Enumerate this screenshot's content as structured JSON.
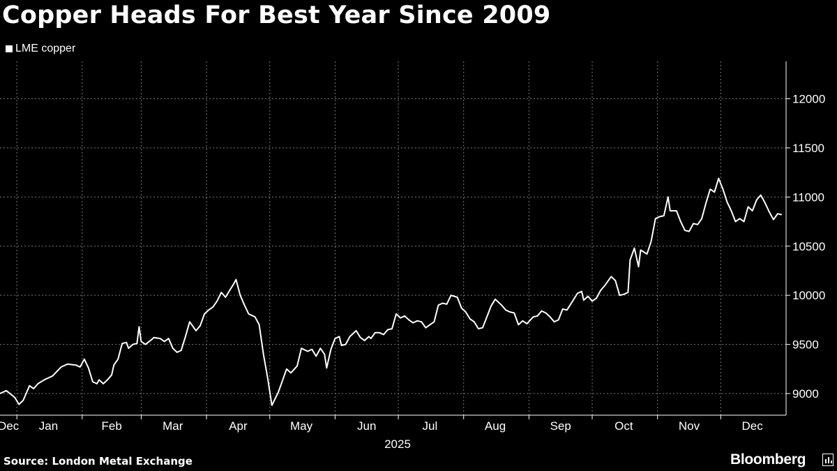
{
  "header": {
    "title": "Copper Heads For Best Year Since 2009"
  },
  "legend": {
    "label": "LME copper"
  },
  "footer": {
    "source": "Source: London Metal Exchange",
    "brand": "Bloomberg"
  },
  "colors": {
    "background": "#000000",
    "line": "#ffffff",
    "grid": "#7a7a7a"
  },
  "chart_data": {
    "type": "line",
    "title": "Copper Heads For Best Year Since 2009",
    "xlabel": "2025",
    "ylabel": "",
    "ylim": [
      8780,
      12380
    ],
    "yticks": [
      9000,
      9500,
      10000,
      10500,
      11000,
      11500,
      12000
    ],
    "y_axis_position": "right",
    "grid": true,
    "legend_position": "top-left",
    "x_range": [
      "2024-12-23",
      "2025-12-31"
    ],
    "x_tick_dates": [
      "2024-12-31",
      "2025-01-31",
      "2025-02-28",
      "2025-03-31",
      "2025-04-30",
      "2025-05-31",
      "2025-06-30",
      "2025-07-31",
      "2025-08-31",
      "2025-09-30",
      "2025-10-31",
      "2025-11-30"
    ],
    "x_labels": [
      {
        "label": "Dec",
        "date": "2024-12-27"
      },
      {
        "label": "Jan",
        "date": "2025-01-15"
      },
      {
        "label": "Feb",
        "date": "2025-02-14"
      },
      {
        "label": "Mar",
        "date": "2025-03-15"
      },
      {
        "label": "Apr",
        "date": "2025-04-15"
      },
      {
        "label": "May",
        "date": "2025-05-15"
      },
      {
        "label": "Jun",
        "date": "2025-06-15"
      },
      {
        "label": "Jul",
        "date": "2025-07-15"
      },
      {
        "label": "Aug",
        "date": "2025-08-15"
      },
      {
        "label": "Sep",
        "date": "2025-09-15"
      },
      {
        "label": "Oct",
        "date": "2025-10-15"
      },
      {
        "label": "Nov",
        "date": "2025-11-15"
      },
      {
        "label": "Dec",
        "date": "2025-12-15"
      }
    ],
    "series": [
      {
        "name": "LME copper",
        "points": [
          [
            "2024-12-23",
            9000
          ],
          [
            "2024-12-26",
            9030
          ],
          [
            "2024-12-30",
            8960
          ],
          [
            "2025-01-01",
            8890
          ],
          [
            "2025-01-03",
            8930
          ],
          [
            "2025-01-06",
            9080
          ],
          [
            "2025-01-08",
            9050
          ],
          [
            "2025-01-10",
            9100
          ],
          [
            "2025-01-13",
            9140
          ],
          [
            "2025-01-15",
            9160
          ],
          [
            "2025-01-17",
            9180
          ],
          [
            "2025-01-21",
            9270
          ],
          [
            "2025-01-24",
            9300
          ],
          [
            "2025-01-28",
            9290
          ],
          [
            "2025-01-30",
            9270
          ],
          [
            "2025-02-01",
            9350
          ],
          [
            "2025-02-03",
            9260
          ],
          [
            "2025-02-05",
            9120
          ],
          [
            "2025-02-07",
            9100
          ],
          [
            "2025-02-08",
            9140
          ],
          [
            "2025-02-10",
            9100
          ],
          [
            "2025-02-12",
            9140
          ],
          [
            "2025-02-14",
            9190
          ],
          [
            "2025-02-15",
            9290
          ],
          [
            "2025-02-17",
            9350
          ],
          [
            "2025-02-19",
            9510
          ],
          [
            "2025-02-21",
            9520
          ],
          [
            "2025-02-22",
            9460
          ],
          [
            "2025-02-24",
            9500
          ],
          [
            "2025-02-26",
            9510
          ],
          [
            "2025-02-27",
            9680
          ],
          [
            "2025-02-28",
            9530
          ],
          [
            "2025-03-02",
            9500
          ],
          [
            "2025-03-05",
            9550
          ],
          [
            "2025-03-06",
            9570
          ],
          [
            "2025-03-09",
            9560
          ],
          [
            "2025-03-11",
            9530
          ],
          [
            "2025-03-13",
            9560
          ],
          [
            "2025-03-15",
            9460
          ],
          [
            "2025-03-17",
            9420
          ],
          [
            "2025-03-19",
            9440
          ],
          [
            "2025-03-21",
            9580
          ],
          [
            "2025-03-23",
            9730
          ],
          [
            "2025-03-26",
            9640
          ],
          [
            "2025-03-28",
            9690
          ],
          [
            "2025-03-30",
            9810
          ],
          [
            "2025-04-01",
            9850
          ],
          [
            "2025-04-03",
            9880
          ],
          [
            "2025-04-05",
            9940
          ],
          [
            "2025-04-07",
            10030
          ],
          [
            "2025-04-09",
            9980
          ],
          [
            "2025-04-11",
            10050
          ],
          [
            "2025-04-13",
            10120
          ],
          [
            "2025-04-14",
            10160
          ],
          [
            "2025-04-16",
            10000
          ],
          [
            "2025-04-18",
            9900
          ],
          [
            "2025-04-20",
            9810
          ],
          [
            "2025-04-23",
            9780
          ],
          [
            "2025-04-25",
            9700
          ],
          [
            "2025-04-27",
            9400
          ],
          [
            "2025-04-29",
            9160
          ],
          [
            "2025-05-01",
            8880
          ],
          [
            "2025-05-04",
            9010
          ],
          [
            "2025-05-06",
            9130
          ],
          [
            "2025-05-08",
            9250
          ],
          [
            "2025-05-10",
            9210
          ],
          [
            "2025-05-13",
            9280
          ],
          [
            "2025-05-15",
            9460
          ],
          [
            "2025-05-18",
            9430
          ],
          [
            "2025-05-20",
            9450
          ],
          [
            "2025-05-22",
            9380
          ],
          [
            "2025-05-24",
            9460
          ],
          [
            "2025-05-26",
            9400
          ],
          [
            "2025-05-27",
            9260
          ],
          [
            "2025-05-29",
            9450
          ],
          [
            "2025-05-31",
            9560
          ],
          [
            "2025-06-02",
            9580
          ],
          [
            "2025-06-03",
            9490
          ],
          [
            "2025-06-05",
            9500
          ],
          [
            "2025-06-07",
            9580
          ],
          [
            "2025-06-10",
            9640
          ],
          [
            "2025-06-12",
            9570
          ],
          [
            "2025-06-14",
            9540
          ],
          [
            "2025-06-16",
            9580
          ],
          [
            "2025-06-17",
            9560
          ],
          [
            "2025-06-19",
            9620
          ],
          [
            "2025-06-21",
            9620
          ],
          [
            "2025-06-23",
            9600
          ],
          [
            "2025-06-25",
            9650
          ],
          [
            "2025-06-27",
            9660
          ],
          [
            "2025-06-29",
            9810
          ],
          [
            "2025-07-01",
            9770
          ],
          [
            "2025-07-03",
            9790
          ],
          [
            "2025-07-05",
            9750
          ],
          [
            "2025-07-07",
            9720
          ],
          [
            "2025-07-09",
            9740
          ],
          [
            "2025-07-11",
            9730
          ],
          [
            "2025-07-13",
            9670
          ],
          [
            "2025-07-15",
            9700
          ],
          [
            "2025-07-17",
            9730
          ],
          [
            "2025-07-19",
            9900
          ],
          [
            "2025-07-21",
            9920
          ],
          [
            "2025-07-23",
            9910
          ],
          [
            "2025-07-25",
            10000
          ],
          [
            "2025-07-28",
            9980
          ],
          [
            "2025-07-30",
            9870
          ],
          [
            "2025-08-01",
            9830
          ],
          [
            "2025-08-03",
            9760
          ],
          [
            "2025-08-05",
            9730
          ],
          [
            "2025-08-07",
            9660
          ],
          [
            "2025-08-09",
            9670
          ],
          [
            "2025-08-11",
            9780
          ],
          [
            "2025-08-13",
            9890
          ],
          [
            "2025-08-15",
            9960
          ],
          [
            "2025-08-18",
            9900
          ],
          [
            "2025-08-20",
            9850
          ],
          [
            "2025-08-22",
            9830
          ],
          [
            "2025-08-24",
            9820
          ],
          [
            "2025-08-26",
            9700
          ],
          [
            "2025-08-28",
            9740
          ],
          [
            "2025-08-30",
            9710
          ],
          [
            "2025-09-02",
            9780
          ],
          [
            "2025-09-04",
            9790
          ],
          [
            "2025-09-06",
            9840
          ],
          [
            "2025-09-08",
            9820
          ],
          [
            "2025-09-10",
            9780
          ],
          [
            "2025-09-12",
            9730
          ],
          [
            "2025-09-14",
            9750
          ],
          [
            "2025-09-16",
            9860
          ],
          [
            "2025-09-18",
            9850
          ],
          [
            "2025-09-21",
            9950
          ],
          [
            "2025-09-23",
            10020
          ],
          [
            "2025-09-25",
            10040
          ],
          [
            "2025-09-26",
            9950
          ],
          [
            "2025-09-28",
            9990
          ],
          [
            "2025-09-30",
            9940
          ],
          [
            "2025-10-02",
            9970
          ],
          [
            "2025-10-04",
            10050
          ],
          [
            "2025-10-06",
            10100
          ],
          [
            "2025-10-09",
            10190
          ],
          [
            "2025-10-11",
            10150
          ],
          [
            "2025-10-13",
            10000
          ],
          [
            "2025-10-15",
            10010
          ],
          [
            "2025-10-17",
            10030
          ],
          [
            "2025-10-18",
            10360
          ],
          [
            "2025-10-20",
            10480
          ],
          [
            "2025-10-22",
            10290
          ],
          [
            "2025-10-23",
            10460
          ],
          [
            "2025-10-26",
            10420
          ],
          [
            "2025-10-28",
            10550
          ],
          [
            "2025-10-30",
            10780
          ],
          [
            "2025-11-01",
            10800
          ],
          [
            "2025-11-03",
            10810
          ],
          [
            "2025-11-05",
            11000
          ],
          [
            "2025-11-06",
            10860
          ],
          [
            "2025-11-09",
            10860
          ],
          [
            "2025-11-11",
            10750
          ],
          [
            "2025-11-13",
            10660
          ],
          [
            "2025-11-15",
            10650
          ],
          [
            "2025-11-17",
            10730
          ],
          [
            "2025-11-19",
            10720
          ],
          [
            "2025-11-21",
            10780
          ],
          [
            "2025-11-23",
            10940
          ],
          [
            "2025-11-25",
            11080
          ],
          [
            "2025-11-27",
            11050
          ],
          [
            "2025-11-29",
            11190
          ],
          [
            "2025-12-01",
            11080
          ],
          [
            "2025-12-03",
            10950
          ],
          [
            "2025-12-05",
            10860
          ],
          [
            "2025-12-07",
            10750
          ],
          [
            "2025-12-09",
            10780
          ],
          [
            "2025-12-11",
            10750
          ],
          [
            "2025-12-13",
            10900
          ],
          [
            "2025-12-15",
            10860
          ],
          [
            "2025-12-17",
            10970
          ],
          [
            "2025-12-19",
            11020
          ],
          [
            "2025-12-21",
            10940
          ],
          [
            "2025-12-23",
            10850
          ],
          [
            "2025-12-25",
            10770
          ],
          [
            "2025-12-27",
            10830
          ],
          [
            "2025-12-29",
            10820
          ]
        ]
      }
    ]
  }
}
